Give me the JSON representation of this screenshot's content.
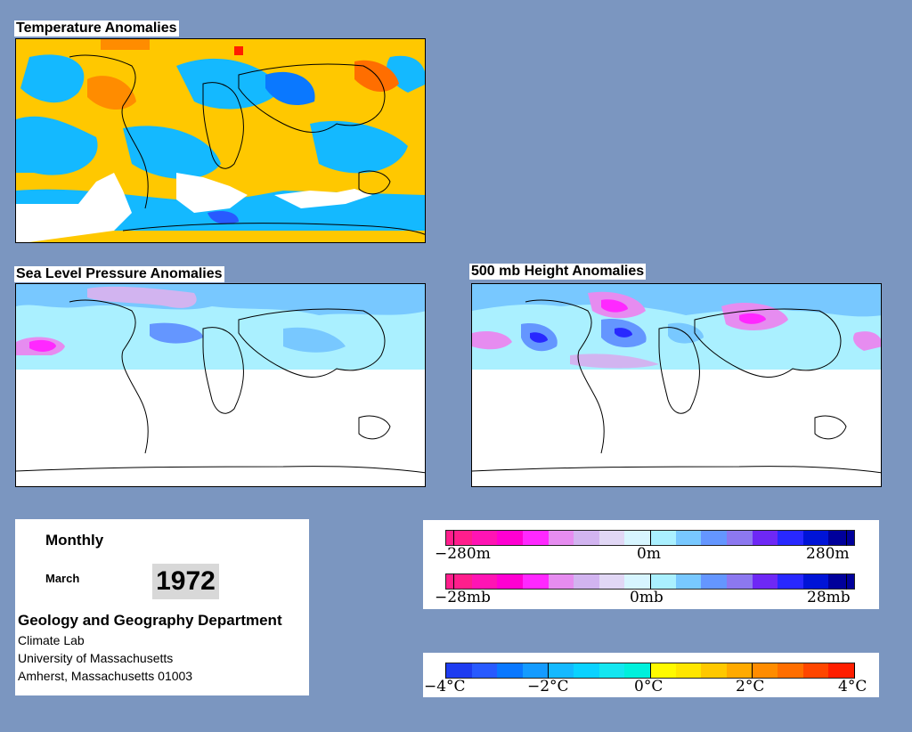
{
  "titles": {
    "temperature": "Temperature Anomalies",
    "slp": "Sea Level Pressure Anomalies",
    "height500": "500 mb Height Anomalies"
  },
  "info": {
    "period": "Monthly",
    "month": "March",
    "year": "1972",
    "department": "Geology and Geography Department",
    "lines": [
      "Climate Lab",
      "University of Massachusetts",
      "Amherst, Massachusetts 01003"
    ]
  },
  "legend_height": {
    "labels": [
      "−280m",
      "0m",
      "280m"
    ],
    "colors": [
      "#ff1e8c",
      "#ff14b4",
      "#ff00d2",
      "#ff28ff",
      "#e68cf0",
      "#d2b4f0",
      "#e1d7f5",
      "#d7f5ff",
      "#aaf0ff",
      "#78c8ff",
      "#6496ff",
      "#8c78f0",
      "#6e28f5",
      "#2828ff",
      "#0014d7",
      "#00009b"
    ]
  },
  "legend_pressure": {
    "labels": [
      "−28mb",
      "0mb",
      "28mb"
    ],
    "colors": [
      "#ff1e8c",
      "#ff14b4",
      "#ff00d2",
      "#ff28ff",
      "#e68cf0",
      "#d2b4f0",
      "#e1d7f5",
      "#d7f5ff",
      "#aaf0ff",
      "#78c8ff",
      "#6496ff",
      "#8c78f0",
      "#6e28f5",
      "#2828ff",
      "#0014d7",
      "#00009b"
    ]
  },
  "legend_temperature": {
    "labels": [
      "−4°C",
      "−2°C",
      "0°C",
      "2°C",
      "4°C"
    ],
    "colors": [
      "#1e3cf0",
      "#285aff",
      "#0a78ff",
      "#149bff",
      "#14b9ff",
      "#0ad2ff",
      "#14e6f0",
      "#00f0dc",
      "#fffa00",
      "#ffe600",
      "#ffc800",
      "#ffaa00",
      "#ff8c00",
      "#ff6e00",
      "#ff4600",
      "#ff1e00"
    ]
  },
  "colors": {
    "background": "#7b96c0",
    "warm": "#ffc800",
    "cold": "#14b9ff",
    "missing": "#ffffff"
  }
}
